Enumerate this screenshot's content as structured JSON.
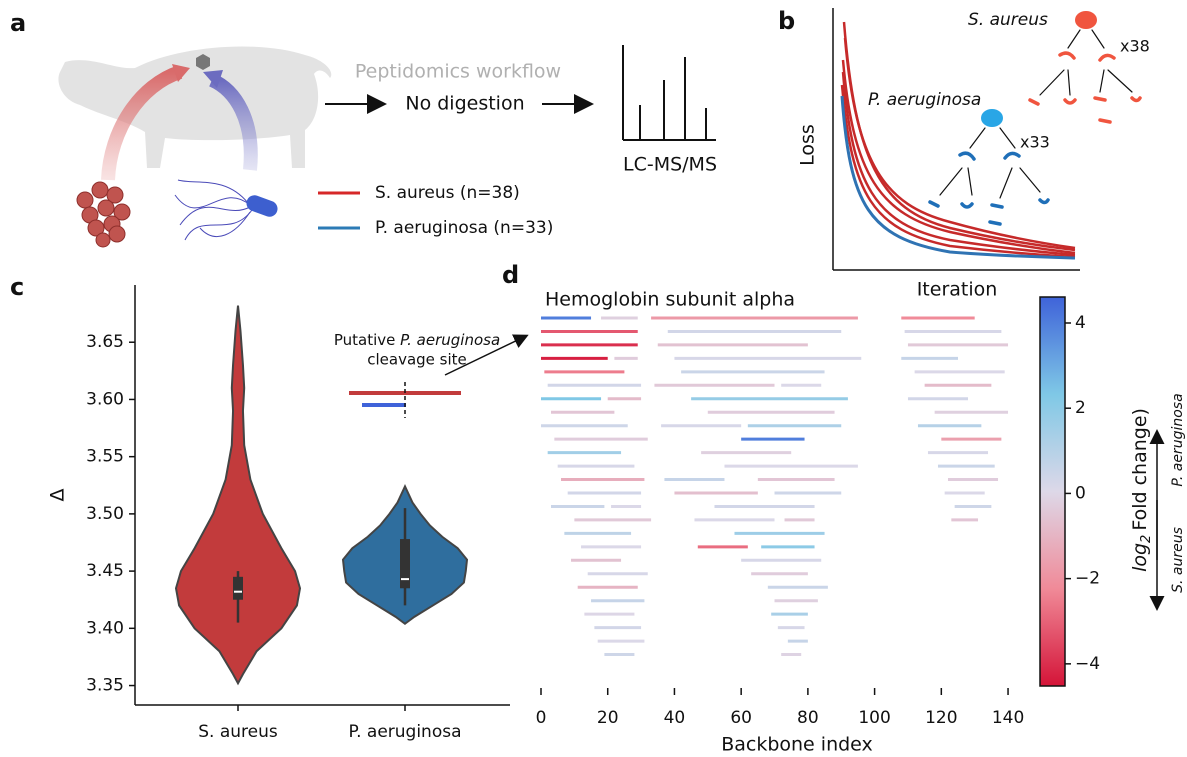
{
  "panel_labels": [
    "a",
    "b",
    "c",
    "d"
  ],
  "panel_a": {
    "workflow_title": "Peptidomics workflow",
    "step": "No digestion",
    "instrument": "LC-MS/MS",
    "legend": [
      {
        "name": "S. aureus (n=38)",
        "color": "#d62728"
      },
      {
        "name": "P. aeruginosa (n=33)",
        "color": "#2c7bb6"
      }
    ]
  },
  "panel_b": {
    "xlabel": "Iteration",
    "ylabel": "Loss",
    "trees": [
      {
        "name": "S. aureus",
        "count": "x38"
      },
      {
        "name": "P. aeruginosa",
        "count": "x33"
      }
    ]
  },
  "chart_data": [
    {
      "type": "violin",
      "ylabel": "Δ",
      "categories": [
        "S. aureus",
        "P. aeruginosa"
      ],
      "colors": [
        "#c23b3c",
        "#2f6e9e"
      ],
      "ylim": [
        3.333,
        3.7
      ],
      "yticks": [
        3.35,
        {
          "value": 3.4,
          "label": "3.40"
        },
        3.45,
        {
          "value": 3.5,
          "label": "3.50"
        },
        3.55,
        {
          "value": 3.6,
          "label": "3.60"
        },
        3.65
      ],
      "violins": [
        {
          "q1": 3.425,
          "median": 3.432,
          "q3": 3.445,
          "whisker_low": 3.405,
          "whisker_high": 3.45,
          "density_y": [
            3.352,
            3.36,
            3.38,
            3.4,
            3.42,
            3.435,
            3.45,
            3.47,
            3.5,
            3.53,
            3.56,
            3.59,
            3.61,
            3.63,
            3.66,
            3.682
          ],
          "density": [
            0,
            0.08,
            0.3,
            0.7,
            0.95,
            1.0,
            0.92,
            0.7,
            0.4,
            0.2,
            0.1,
            0.08,
            0.1,
            0.08,
            0.04,
            0
          ]
        },
        {
          "q1": 3.435,
          "median": 3.443,
          "q3": 3.478,
          "whisker_low": 3.42,
          "whisker_high": 3.505,
          "density_y": [
            3.404,
            3.41,
            3.42,
            3.43,
            3.44,
            3.45,
            3.46,
            3.47,
            3.48,
            3.49,
            3.5,
            3.51,
            3.524
          ],
          "density": [
            0,
            0.15,
            0.45,
            0.75,
            0.95,
            0.98,
            1.0,
            0.85,
            0.6,
            0.4,
            0.25,
            0.12,
            0
          ]
        }
      ],
      "annotation": {
        "prefix": "Putative",
        "italic": "P. aeruginosa",
        "suffix": "cleavage site"
      }
    },
    {
      "type": "peptide-map",
      "title": "Hemoglobin subunit alpha",
      "xlabel": "Backbone index",
      "xlim": [
        -1,
        145
      ],
      "xticks": [
        0,
        20,
        40,
        60,
        80,
        100,
        120,
        140
      ],
      "starts": [
        0,
        0,
        0,
        0,
        1,
        2,
        0,
        3,
        0,
        4,
        2,
        5,
        6,
        8,
        3,
        10,
        7,
        12,
        9,
        14,
        11,
        15,
        13,
        16,
        18,
        17,
        20,
        19,
        21,
        22,
        33,
        38,
        35,
        40,
        42,
        34,
        45,
        50,
        36,
        60,
        48,
        55,
        37,
        62,
        40,
        52,
        65,
        46,
        58,
        70,
        47,
        60,
        66,
        63,
        68,
        70,
        72,
        69,
        73,
        71,
        74,
        72,
        108,
        109,
        110,
        108,
        112,
        115,
        110,
        118,
        113,
        120,
        116,
        119,
        122,
        121,
        124,
        123
      ],
      "ends": [
        15,
        29,
        29,
        20,
        25,
        30,
        18,
        22,
        26,
        32,
        24,
        28,
        31,
        30,
        19,
        33,
        27,
        30,
        24,
        32,
        29,
        31,
        28,
        30,
        29,
        31,
        30,
        28,
        30,
        29,
        95,
        90,
        80,
        96,
        85,
        70,
        92,
        88,
        60,
        79,
        75,
        95,
        55,
        90,
        65,
        82,
        88,
        70,
        85,
        90,
        62,
        84,
        82,
        80,
        86,
        83,
        84,
        80,
        82,
        79,
        80,
        78,
        130,
        138,
        140,
        125,
        139,
        135,
        128,
        140,
        132,
        138,
        134,
        136,
        137,
        133,
        135,
        131
      ],
      "values": [
        4.0,
        -3.2,
        -4.0,
        -4.3,
        -2.5,
        0.3,
        2.3,
        -0.5,
        0.4,
        -0.3,
        1.5,
        0.2,
        -1.2,
        0.3,
        0.5,
        -0.4,
        0.8,
        0.1,
        -0.6,
        0.2,
        -1.0,
        0.6,
        0.0,
        0.3,
        -0.2,
        0.1,
        -0.8,
        0.4,
        0.1,
        -0.3,
        -1.8,
        0.3,
        -0.6,
        0.2,
        0.5,
        -0.4,
        1.8,
        -0.3,
        0.2,
        4.0,
        -0.2,
        0.1,
        0.6,
        1.2,
        -0.7,
        0.3,
        -0.5,
        0.1,
        1.6,
        0.4,
        -2.8,
        0.2,
        2.0,
        -0.3,
        0.5,
        -0.2,
        0.1,
        1.3,
        -0.4,
        0.2,
        0.6,
        -0.1,
        -2.2,
        0.2,
        -0.4,
        0.6,
        0.1,
        -0.8,
        0.3,
        -0.2,
        1.0,
        -1.6,
        0.2,
        0.5,
        -0.3,
        0.1,
        0.4,
        -0.5
      ],
      "colorbar": {
        "ylim": [
          -4.52,
          4.61
        ],
        "yticks": [
          {
            "value": -4,
            "label": "−4"
          },
          {
            "value": -2,
            "label": "−2"
          },
          0,
          2,
          4
        ],
        "colors": [
          "#d41438",
          "#f08a98",
          "#ddd8e8",
          "#7fc8e6",
          "#3f63d9"
        ],
        "label": {
          "base": "log",
          "subscript": "2",
          "text": "Fold change)"
        },
        "up_label": "P. aeruginosa",
        "down_label": "S. aureus"
      }
    }
  ]
}
